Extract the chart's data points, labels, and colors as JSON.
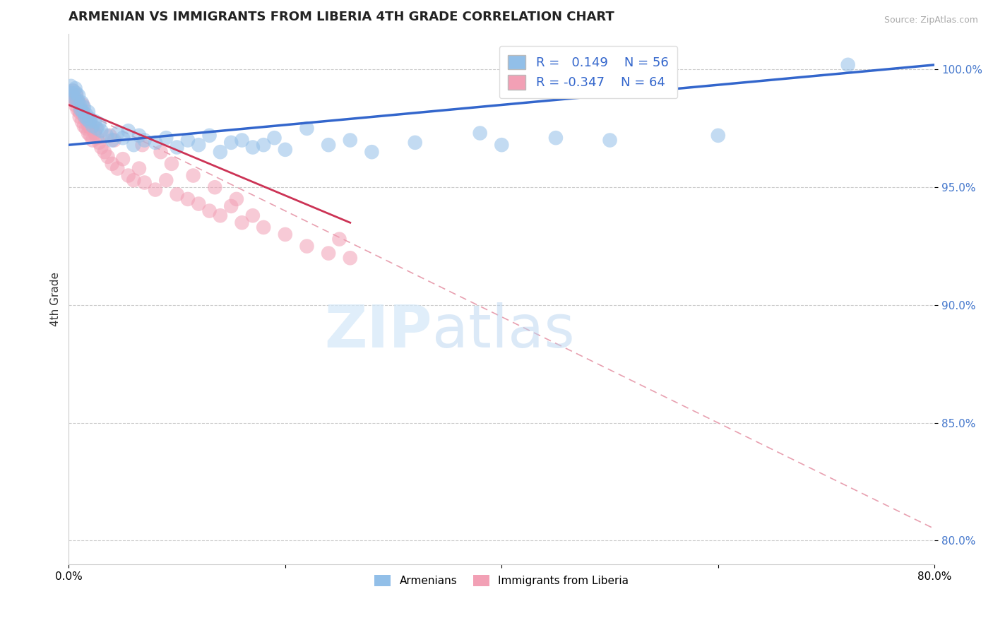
{
  "title": "ARMENIAN VS IMMIGRANTS FROM LIBERIA 4TH GRADE CORRELATION CHART",
  "source_text": "Source: ZipAtlas.com",
  "ylabel": "4th Grade",
  "xlim": [
    0.0,
    80.0
  ],
  "ylim": [
    79.0,
    101.5
  ],
  "yticks": [
    80.0,
    85.0,
    90.0,
    95.0,
    100.0
  ],
  "ytick_labels": [
    "80.0%",
    "85.0%",
    "90.0%",
    "95.0%",
    "100.0%"
  ],
  "xtick_labels": [
    "0.0%",
    "",
    "",
    "",
    "80.0%"
  ],
  "blue_color": "#92bfe8",
  "pink_color": "#f2a0b5",
  "blue_line_color": "#3366cc",
  "pink_line_color": "#cc3355",
  "pink_dash_color": "#e8a0b0",
  "R_blue": 0.149,
  "N_blue": 56,
  "R_pink": -0.347,
  "N_pink": 64,
  "legend_labels": [
    "Armenians",
    "Immigrants from Liberia"
  ],
  "watermark_zip": "ZIP",
  "watermark_atlas": "atlas",
  "background_color": "#ffffff",
  "blue_scatter_x": [
    0.2,
    0.3,
    0.4,
    0.5,
    0.6,
    0.7,
    0.8,
    0.9,
    1.0,
    1.1,
    1.2,
    1.3,
    1.4,
    1.5,
    1.6,
    1.7,
    1.8,
    1.9,
    2.0,
    2.2,
    2.4,
    2.6,
    2.8,
    3.0,
    3.5,
    4.0,
    4.5,
    5.0,
    5.5,
    6.0,
    6.5,
    7.0,
    8.0,
    9.0,
    10.0,
    11.0,
    12.0,
    13.0,
    14.0,
    15.0,
    16.0,
    17.0,
    18.0,
    19.0,
    20.0,
    22.0,
    24.0,
    26.0,
    28.0,
    32.0,
    38.0,
    40.0,
    45.0,
    50.0,
    60.0,
    72.0
  ],
  "blue_scatter_y": [
    99.3,
    99.0,
    99.1,
    98.8,
    99.2,
    99.0,
    98.7,
    98.9,
    98.5,
    98.3,
    98.6,
    98.2,
    98.4,
    98.0,
    98.1,
    97.9,
    98.2,
    97.8,
    97.9,
    97.6,
    97.8,
    97.5,
    97.7,
    97.4,
    97.2,
    97.0,
    97.3,
    97.1,
    97.4,
    96.8,
    97.2,
    97.0,
    96.9,
    97.1,
    96.7,
    97.0,
    96.8,
    97.2,
    96.5,
    96.9,
    97.0,
    96.7,
    96.8,
    97.1,
    96.6,
    97.5,
    96.8,
    97.0,
    96.5,
    96.9,
    97.3,
    96.8,
    97.1,
    97.0,
    97.2,
    100.2
  ],
  "pink_scatter_x": [
    0.2,
    0.3,
    0.4,
    0.5,
    0.6,
    0.7,
    0.8,
    0.9,
    1.0,
    1.1,
    1.2,
    1.3,
    1.4,
    1.5,
    1.6,
    1.7,
    1.8,
    1.9,
    2.0,
    2.1,
    2.2,
    2.4,
    2.6,
    2.8,
    3.0,
    3.3,
    3.6,
    4.0,
    4.5,
    5.0,
    5.5,
    6.0,
    6.5,
    7.0,
    8.0,
    9.0,
    10.0,
    11.0,
    12.0,
    13.0,
    14.0,
    15.0,
    16.0,
    17.0,
    18.0,
    20.0,
    22.0,
    24.0,
    25.0,
    26.0,
    8.5,
    9.5,
    11.5,
    13.5,
    15.5,
    3.8,
    4.2,
    1.3,
    2.5,
    6.8,
    1.0,
    2.0,
    0.5,
    1.8
  ],
  "pink_scatter_y": [
    99.0,
    98.7,
    99.1,
    98.8,
    98.5,
    98.9,
    98.3,
    98.6,
    98.0,
    98.3,
    97.8,
    98.1,
    97.6,
    97.9,
    97.5,
    97.8,
    97.3,
    97.6,
    97.2,
    97.5,
    97.0,
    97.3,
    97.1,
    96.9,
    96.7,
    96.5,
    96.3,
    96.0,
    95.8,
    96.2,
    95.5,
    95.3,
    95.8,
    95.2,
    94.9,
    95.3,
    94.7,
    94.5,
    94.3,
    94.0,
    93.8,
    94.2,
    93.5,
    93.8,
    93.3,
    93.0,
    92.5,
    92.2,
    92.8,
    92.0,
    96.5,
    96.0,
    95.5,
    95.0,
    94.5,
    97.2,
    97.0,
    98.5,
    97.5,
    96.8,
    98.2,
    97.8,
    98.8,
    97.6
  ],
  "blue_trend_x0": 0.0,
  "blue_trend_x1": 80.0,
  "blue_trend_y0": 96.8,
  "blue_trend_y1": 100.2,
  "pink_trend_x0": 0.0,
  "pink_trend_x1": 26.0,
  "pink_trend_y0": 98.5,
  "pink_trend_y1": 93.5,
  "pink_dash_x0": 0.0,
  "pink_dash_x1": 80.0,
  "pink_dash_y0": 98.5,
  "pink_dash_y1": 80.5
}
